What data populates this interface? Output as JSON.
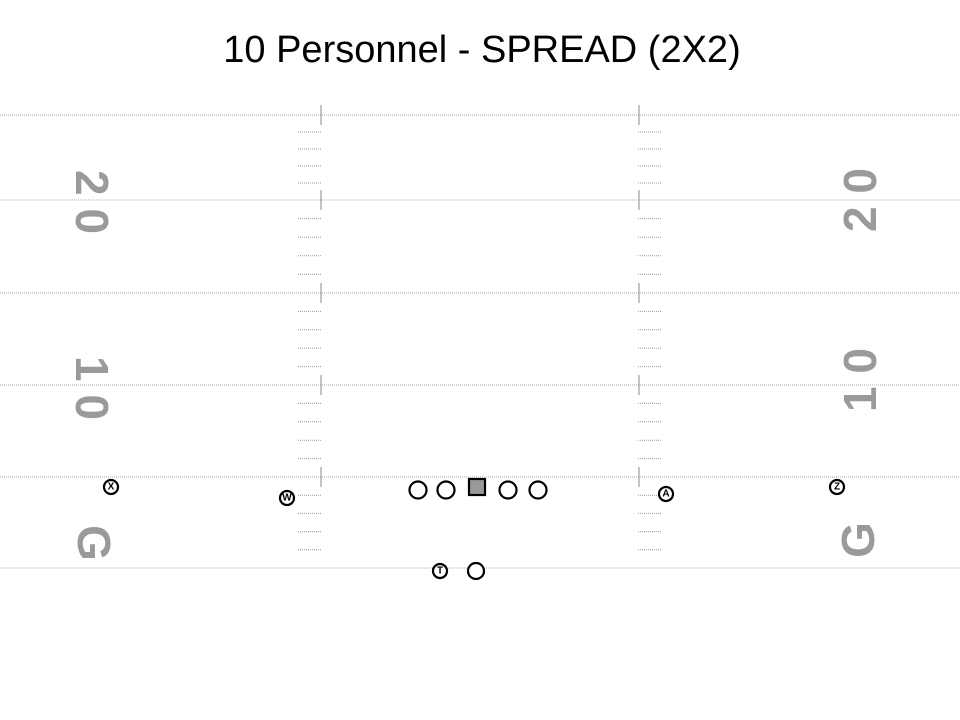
{
  "title": "10 Personnel - SPREAD (2X2)",
  "yard_numbers": [
    "2 0",
    "1 0",
    "G"
  ],
  "players": [
    "X",
    "W",
    "A",
    "Z",
    "T"
  ]
}
